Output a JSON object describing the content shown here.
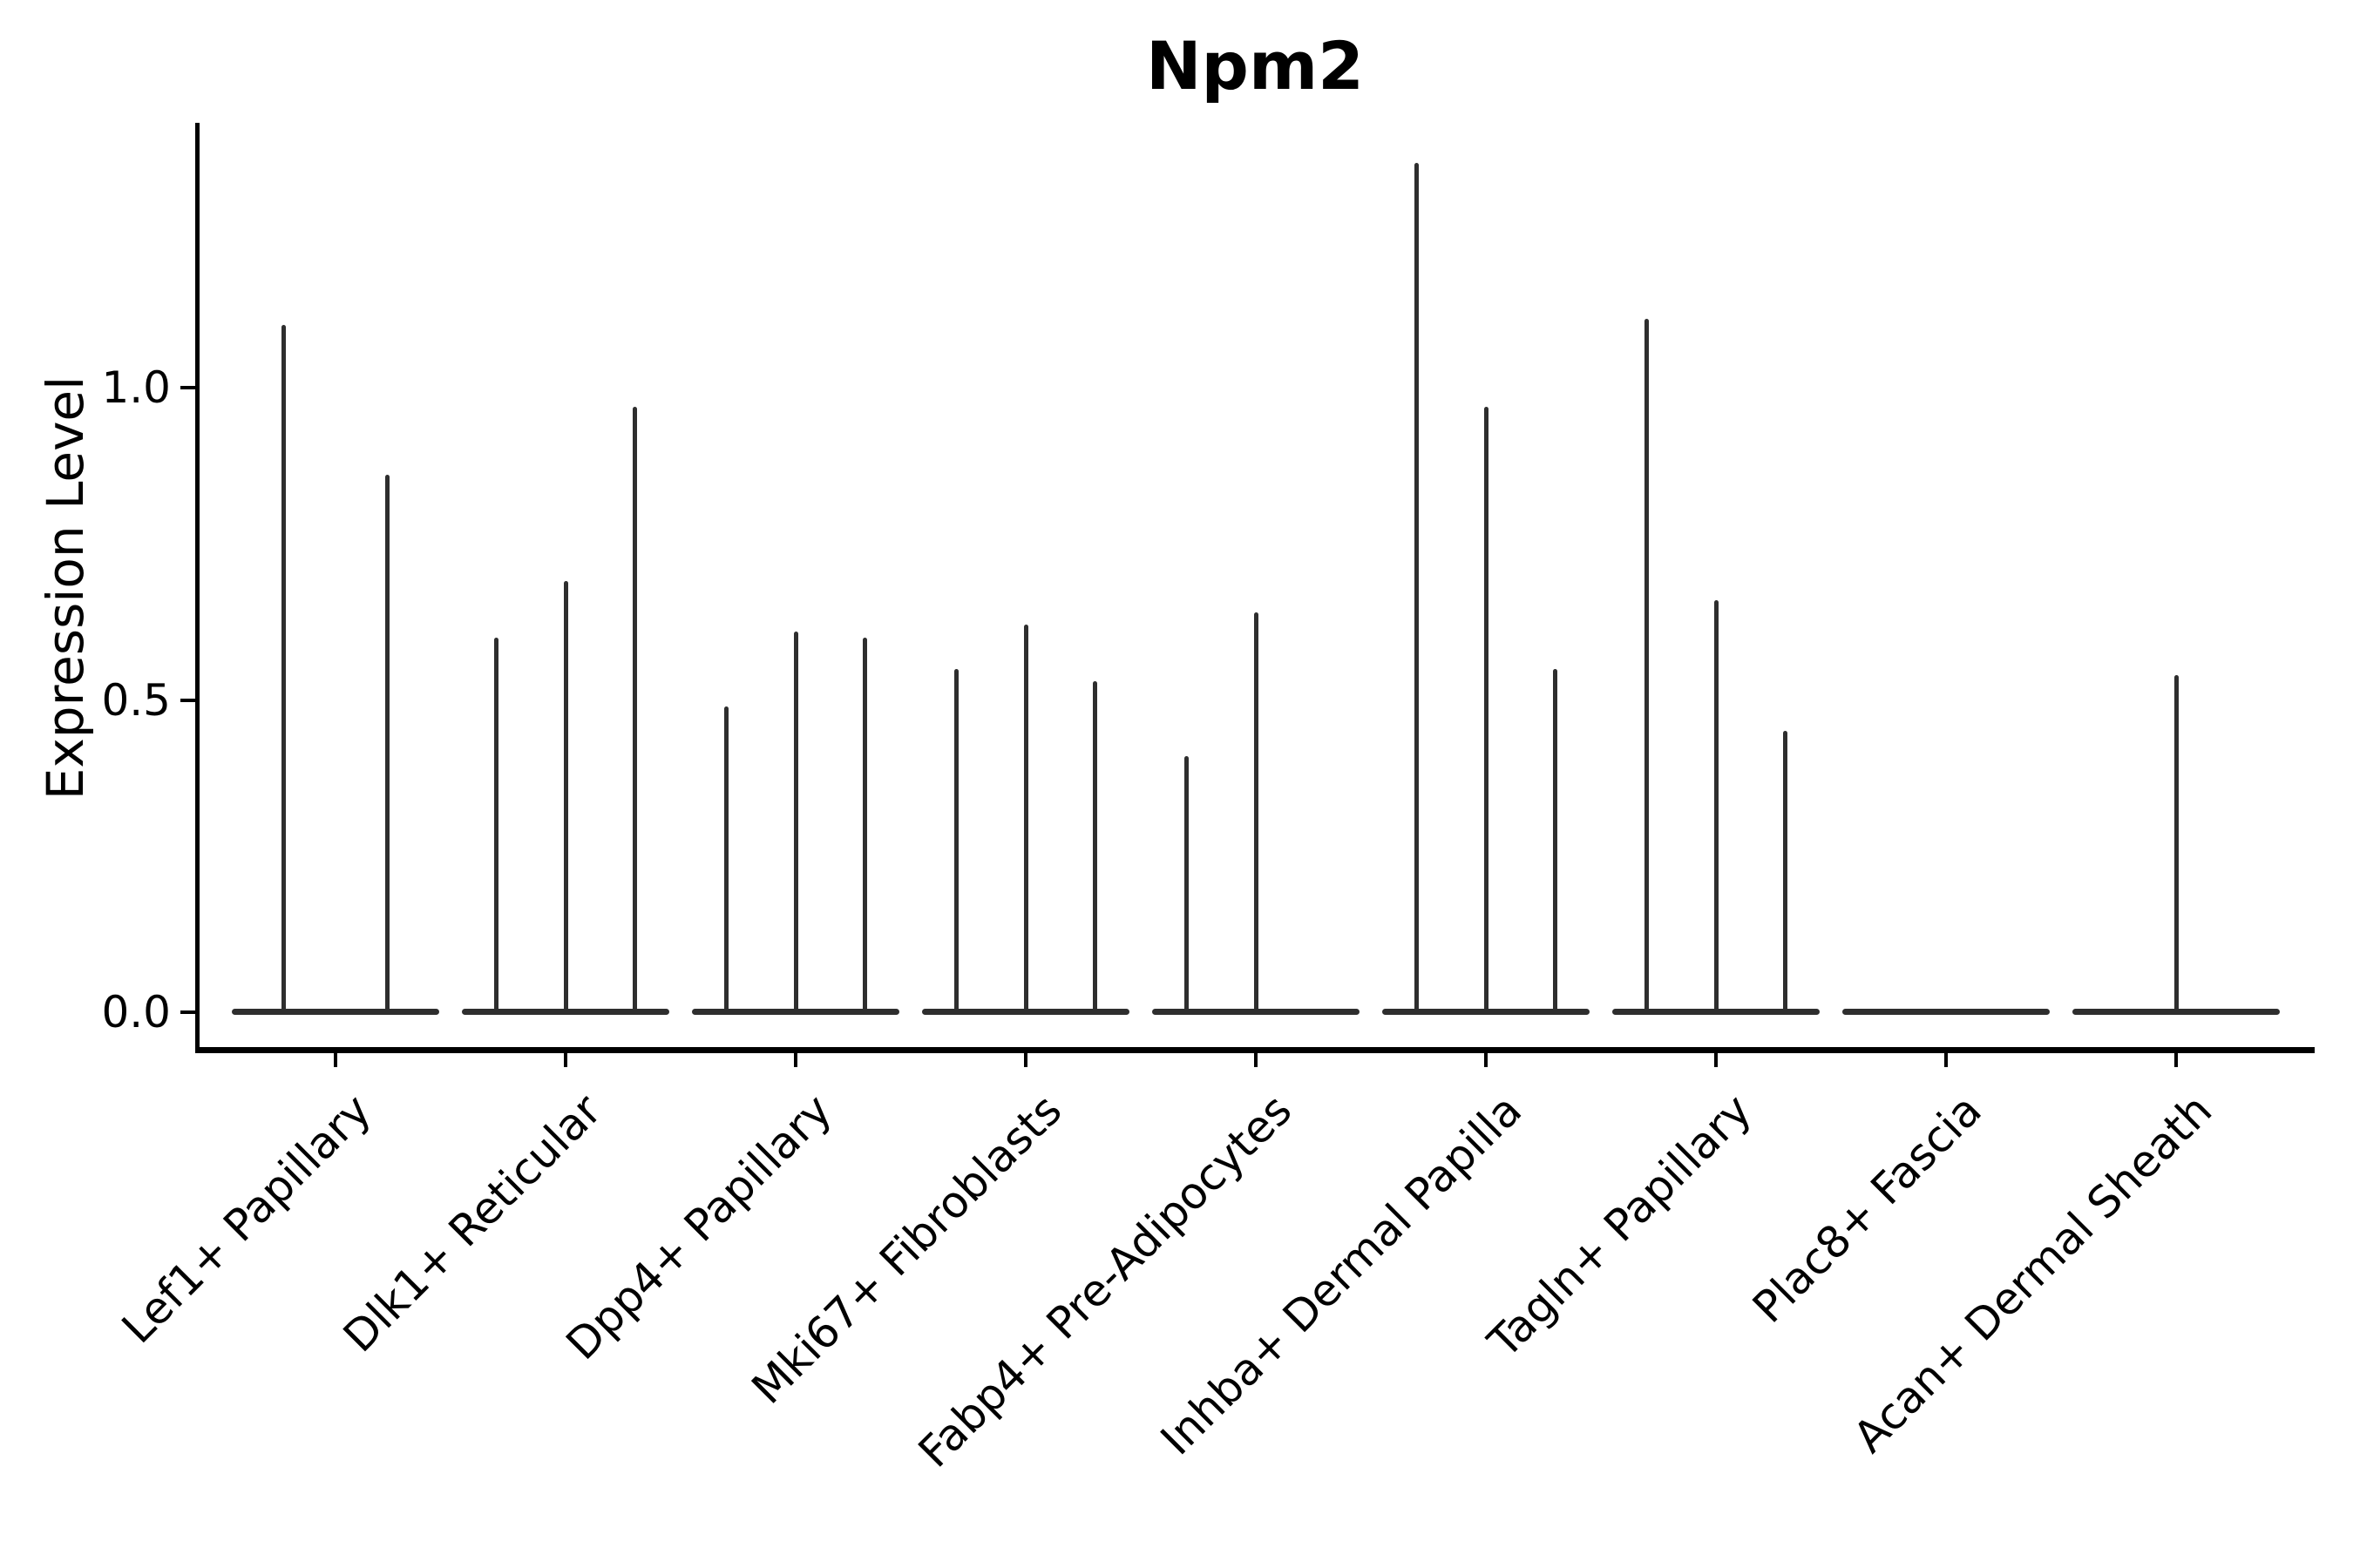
{
  "title": "Npm2",
  "y_axis": {
    "label": "Expression Level",
    "ticks": [
      {
        "label": "0.0",
        "value": 0.0
      },
      {
        "label": "0.5",
        "value": 0.5
      },
      {
        "label": "1.0",
        "value": 1.0
      }
    ]
  },
  "colors": {
    "ink": "#2e2e2e",
    "axis": "#000000",
    "background": "#ffffff"
  },
  "chart_data": {
    "type": "violin",
    "title": "Npm2",
    "xlabel": "",
    "ylabel": "Expression Level",
    "ylim": [
      0,
      1.42
    ],
    "yticks": [
      0.0,
      0.5,
      1.0
    ],
    "grid": false,
    "legend": "none",
    "description": "Violin plot of Npm2 expression; each category shows flat zero-density bases with thin spikes reaching the maximum expression value of each sub-violin (0 = no spike).",
    "categories": [
      "Lef1+ Papillary",
      "Dlk1+ Reticular",
      "Dpp4+ Papillary",
      "Mki67+ Fibroblasts",
      "Fabp4+ Pre-Adipocytes",
      "Inhba+ Dermal Papilla",
      "Tagln+ Papillary",
      "Plac8+ Fascia",
      "Acan+ Dermal Sheath"
    ],
    "groups": [
      {
        "label": "Lef1+ Papillary",
        "spike_maxima": [
          1.1,
          0.86
        ]
      },
      {
        "label": "Dlk1+ Reticular",
        "spike_maxima": [
          0.6,
          0.69,
          0.97
        ]
      },
      {
        "label": "Dpp4+ Papillary",
        "spike_maxima": [
          0.49,
          0.61,
          0.6
        ]
      },
      {
        "label": "Mki67+ Fibroblasts",
        "spike_maxima": [
          0.55,
          0.62,
          0.53
        ]
      },
      {
        "label": "Fabp4+ Pre-Adipocytes",
        "spike_maxima": [
          0.41,
          0.64,
          0
        ]
      },
      {
        "label": "Inhba+ Dermal Papilla",
        "spike_maxima": [
          1.36,
          0.97,
          0.55
        ]
      },
      {
        "label": "Tagln+ Papillary",
        "spike_maxima": [
          1.11,
          0.66,
          0.45
        ]
      },
      {
        "label": "Plac8+ Fascia",
        "spike_maxima": [
          0
        ]
      },
      {
        "label": "Acan+ Dermal Sheath",
        "spike_maxima": [
          0.54
        ]
      }
    ]
  }
}
